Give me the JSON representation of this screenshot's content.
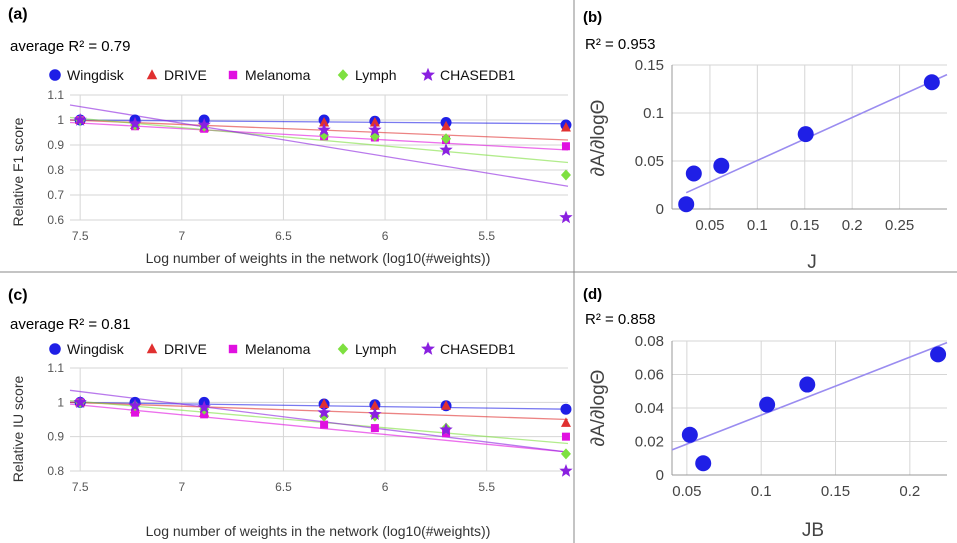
{
  "chart_data": [
    {
      "panel": "(a)",
      "type": "scatter",
      "r2_text": "average R² = 0.79",
      "xlabel": "Log number of weights in the network (log10(#weights))",
      "ylabel": "Relative F1 score",
      "xlim": [
        7.55,
        5.1
      ],
      "ylim": [
        0.6,
        1.1
      ],
      "x_ticks": [
        "7.5",
        "7",
        "6.5",
        "6",
        "5.5"
      ],
      "x_tick_values": [
        7.5,
        7,
        6.5,
        6,
        5.5
      ],
      "y_ticks": [
        "0.6",
        "0.7",
        "0.8",
        "0.9",
        "1",
        "1.1"
      ],
      "y_tick_values": [
        0.6,
        0.7,
        0.8,
        0.9,
        1.0,
        1.1
      ],
      "x": [
        7.5,
        7.23,
        6.89,
        6.3,
        6.05,
        5.7,
        5.11
      ],
      "series": [
        {
          "name": "Wingdisk",
          "marker": "circle",
          "color": "#1f1fe6",
          "values": [
            1.0,
            1.0,
            1.0,
            1.0,
            0.995,
            0.99,
            0.98
          ],
          "trend": [
            1.0,
            0.985
          ]
        },
        {
          "name": "DRIVE",
          "marker": "triangle",
          "color": "#e03030",
          "values": [
            1.0,
            0.98,
            0.97,
            0.99,
            0.99,
            0.975,
            0.97
          ],
          "trend": [
            1.0,
            0.92
          ]
        },
        {
          "name": "Melanoma",
          "marker": "square",
          "color": "#e010e0",
          "values": [
            1.0,
            0.975,
            0.965,
            0.935,
            0.93,
            0.92,
            0.895
          ],
          "trend": [
            0.99,
            0.88
          ]
        },
        {
          "name": "Lymph",
          "marker": "diamond",
          "color": "#7ee040",
          "values": [
            1.0,
            0.98,
            0.975,
            0.94,
            0.935,
            0.925,
            0.78
          ],
          "trend": [
            1.01,
            0.83
          ]
        },
        {
          "name": "CHASEDB1",
          "marker": "star",
          "color": "#8a20e0",
          "values": [
            1.0,
            0.985,
            0.98,
            0.96,
            0.96,
            0.88,
            0.61
          ],
          "trend": [
            1.06,
            0.735
          ]
        }
      ]
    },
    {
      "panel": "(b)",
      "type": "scatter",
      "r2_text": "R² = 0.953",
      "xlabel": "J",
      "ylabel": "∂A/∂logΘ",
      "xlim": [
        0.01,
        0.3
      ],
      "ylim": [
        0,
        0.15
      ],
      "x_ticks": [
        "0.05",
        "0.1",
        "0.15",
        "0.2",
        "0.25"
      ],
      "x_tick_values": [
        0.05,
        0.1,
        0.15,
        0.2,
        0.25
      ],
      "y_ticks": [
        "0",
        "0.05",
        "0.1",
        "0.15"
      ],
      "y_tick_values": [
        0,
        0.05,
        0.1,
        0.15
      ],
      "points": [
        [
          0.025,
          0.005
        ],
        [
          0.033,
          0.037
        ],
        [
          0.062,
          0.045
        ],
        [
          0.151,
          0.078
        ],
        [
          0.284,
          0.132
        ]
      ],
      "trend": [
        [
          0.025,
          0.017
        ],
        [
          0.3,
          0.14
        ]
      ],
      "color": "#1f1fe6"
    },
    {
      "panel": "(c)",
      "type": "scatter",
      "r2_text": "average R² = 0.81",
      "xlabel": "Log number of weights in the network (log10(#weights))",
      "ylabel": "Relative IU score",
      "xlim": [
        7.55,
        5.1
      ],
      "ylim": [
        0.8,
        1.1
      ],
      "x_ticks": [
        "7.5",
        "7",
        "6.5",
        "6",
        "5.5"
      ],
      "x_tick_values": [
        7.5,
        7,
        6.5,
        6,
        5.5
      ],
      "y_ticks": [
        "0.8",
        "0.9",
        "1",
        "1.1"
      ],
      "y_tick_values": [
        0.8,
        0.9,
        1.0,
        1.1
      ],
      "x": [
        7.5,
        7.23,
        6.89,
        6.3,
        6.05,
        5.7,
        5.11
      ],
      "series": [
        {
          "name": "Wingdisk",
          "marker": "circle",
          "color": "#1f1fe6",
          "values": [
            1.0,
            1.0,
            1.0,
            0.995,
            0.993,
            0.99,
            0.98
          ],
          "trend": [
            1.0,
            0.98
          ]
        },
        {
          "name": "DRIVE",
          "marker": "triangle",
          "color": "#e03030",
          "values": [
            1.0,
            0.98,
            0.97,
            0.995,
            0.99,
            0.99,
            0.94
          ],
          "trend": [
            1.0,
            0.95
          ]
        },
        {
          "name": "Melanoma",
          "marker": "square",
          "color": "#e010e0",
          "values": [
            1.0,
            0.97,
            0.965,
            0.935,
            0.925,
            0.91,
            0.9
          ],
          "trend": [
            0.995,
            0.855
          ]
        },
        {
          "name": "Lymph",
          "marker": "diamond",
          "color": "#7ee040",
          "values": [
            1.0,
            0.99,
            0.98,
            0.96,
            0.96,
            0.925,
            0.85
          ],
          "trend": [
            1.005,
            0.88
          ]
        },
        {
          "name": "CHASEDB1",
          "marker": "star",
          "color": "#8a20e0",
          "values": [
            1.0,
            0.99,
            0.985,
            0.97,
            0.965,
            0.92,
            0.8
          ],
          "trend": [
            1.035,
            0.855
          ]
        }
      ]
    },
    {
      "panel": "(d)",
      "type": "scatter",
      "r2_text": "R² = 0.858",
      "xlabel": "JB",
      "ylabel": "∂A/∂logΘ",
      "xlim": [
        0.04,
        0.225
      ],
      "ylim": [
        0,
        0.08
      ],
      "x_ticks": [
        "0.05",
        "0.1",
        "0.15",
        "0.2"
      ],
      "x_tick_values": [
        0.05,
        0.1,
        0.15,
        0.2
      ],
      "y_ticks": [
        "0",
        "0.02",
        "0.04",
        "0.06",
        "0.08"
      ],
      "y_tick_values": [
        0,
        0.02,
        0.04,
        0.06,
        0.08
      ],
      "points": [
        [
          0.052,
          0.024
        ],
        [
          0.061,
          0.007
        ],
        [
          0.104,
          0.042
        ],
        [
          0.131,
          0.054
        ],
        [
          0.219,
          0.072
        ]
      ],
      "trend": [
        [
          0.04,
          0.015
        ],
        [
          0.225,
          0.079
        ]
      ],
      "color": "#1f1fe6"
    }
  ],
  "panels": {
    "a": {
      "letter": "(a)"
    },
    "b": {
      "letter": "(b)"
    },
    "c": {
      "letter": "(c)"
    },
    "d": {
      "letter": "(d)"
    }
  },
  "colors": {
    "grid": "#d6d6d6",
    "axis_text": "#555555",
    "divider": "#888888"
  }
}
